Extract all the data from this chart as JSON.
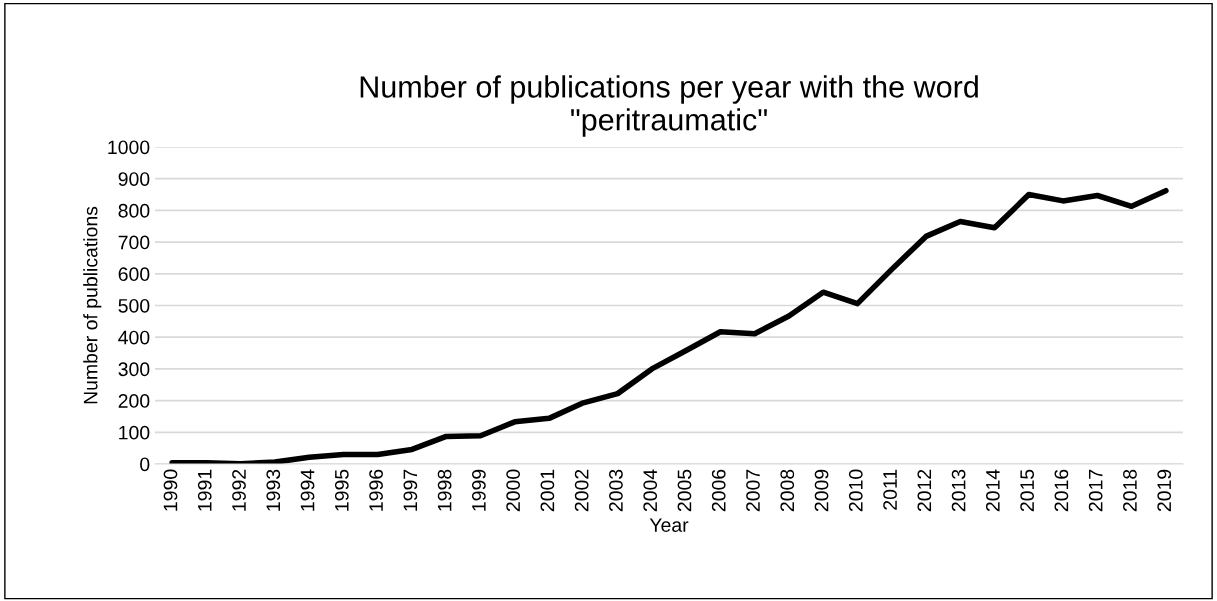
{
  "chart_data": {
    "type": "line",
    "title": "Number of publications per year with the word\n\"peritraumatic\"",
    "xlabel": "Year",
    "ylabel": "Number of publications",
    "categories": [
      "1990",
      "1991",
      "1992",
      "1993",
      "1994",
      "1995",
      "1996",
      "1997",
      "1998",
      "1999",
      "2000",
      "2001",
      "2002",
      "2003",
      "2004",
      "2005",
      "2006",
      "2007",
      "2008",
      "2009",
      "2010",
      "2011",
      "2012",
      "2013",
      "2014",
      "2015",
      "2016",
      "2017",
      "2018",
      "2019"
    ],
    "series": [
      {
        "color": "#000000",
        "values": [
          4,
          4,
          1,
          6,
          21,
          30,
          30,
          46,
          87,
          89,
          133,
          144,
          193,
          222,
          300,
          358,
          417,
          411,
          467,
          542,
          506,
          614,
          718,
          765,
          745,
          850,
          830,
          847,
          813,
          862
        ]
      }
    ],
    "ylim": [
      0,
      1000
    ],
    "yticks": [
      0,
      100,
      200,
      300,
      400,
      500,
      600,
      700,
      800,
      900,
      1000
    ],
    "grid": "y",
    "legend": false,
    "marker": "none",
    "line_style": "solid"
  }
}
